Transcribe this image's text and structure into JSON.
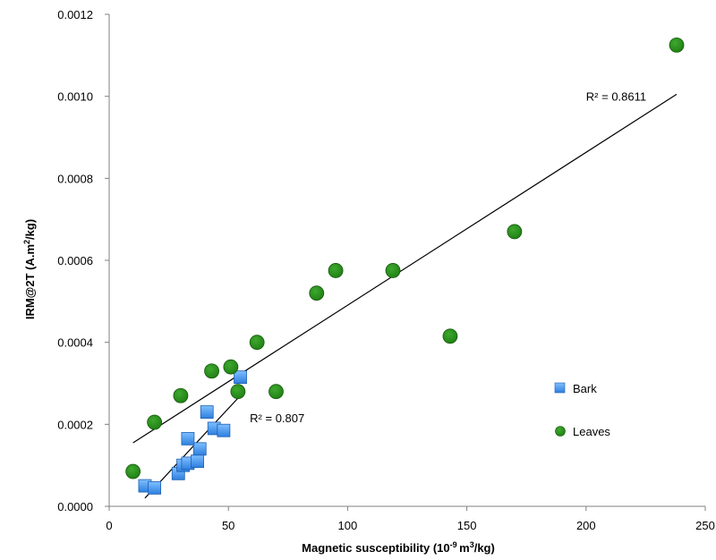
{
  "chart_data": {
    "type": "scatter",
    "xlabel_parts": [
      "Magnetic susceptibility (10",
      "-9 ",
      "m",
      "3",
      "/kg)"
    ],
    "ylabel_parts": [
      "IRM@2T  (A.m",
      "2",
      "/kg)"
    ],
    "xlim": [
      0,
      250
    ],
    "ylim": [
      0,
      0.0012
    ],
    "xticks": [
      0,
      50,
      100,
      150,
      200,
      250
    ],
    "xtick_labels": [
      "0",
      "50",
      "100",
      "150",
      "200",
      "250"
    ],
    "yticks": [
      0,
      0.0002,
      0.0004,
      0.0006,
      0.0008,
      0.001,
      0.0012
    ],
    "ytick_labels": [
      "0.0000",
      "0.0002",
      "0.0004",
      "0.0006",
      "0.0008",
      "0.0010",
      "0.0012"
    ],
    "grid": false,
    "legend_position": "right",
    "series": [
      {
        "name": "Bark",
        "marker": "square",
        "color": "#2E7FE0",
        "points": [
          [
            15,
            5e-05
          ],
          [
            19,
            4.5e-05
          ],
          [
            29,
            8e-05
          ],
          [
            31,
            0.0001
          ],
          [
            33,
            0.000105
          ],
          [
            37,
            0.00011
          ],
          [
            38,
            0.00014
          ],
          [
            33,
            0.000165
          ],
          [
            44,
            0.00019
          ],
          [
            48,
            0.000185
          ],
          [
            41,
            0.00023
          ],
          [
            55,
            0.000315
          ]
        ],
        "trendline": {
          "x": [
            15,
            55
          ],
          "y": [
            2e-05,
            0.00027
          ],
          "r2_label": "R² = 0.807"
        }
      },
      {
        "name": "Leaves",
        "marker": "circle",
        "color": "#1E7F12",
        "points": [
          [
            10,
            8.5e-05
          ],
          [
            19,
            0.000205
          ],
          [
            30,
            0.00027
          ],
          [
            43,
            0.00033
          ],
          [
            51,
            0.00034
          ],
          [
            54,
            0.00028
          ],
          [
            62,
            0.0004
          ],
          [
            70,
            0.00028
          ],
          [
            87,
            0.00052
          ],
          [
            95,
            0.000575
          ],
          [
            119,
            0.000575
          ],
          [
            143,
            0.000415
          ],
          [
            170,
            0.00067
          ],
          [
            238,
            0.001125
          ]
        ],
        "trendline": {
          "x": [
            10,
            238
          ],
          "y": [
            0.000155,
            0.001005
          ],
          "r2_label": "R² = 0.8611"
        }
      }
    ]
  }
}
